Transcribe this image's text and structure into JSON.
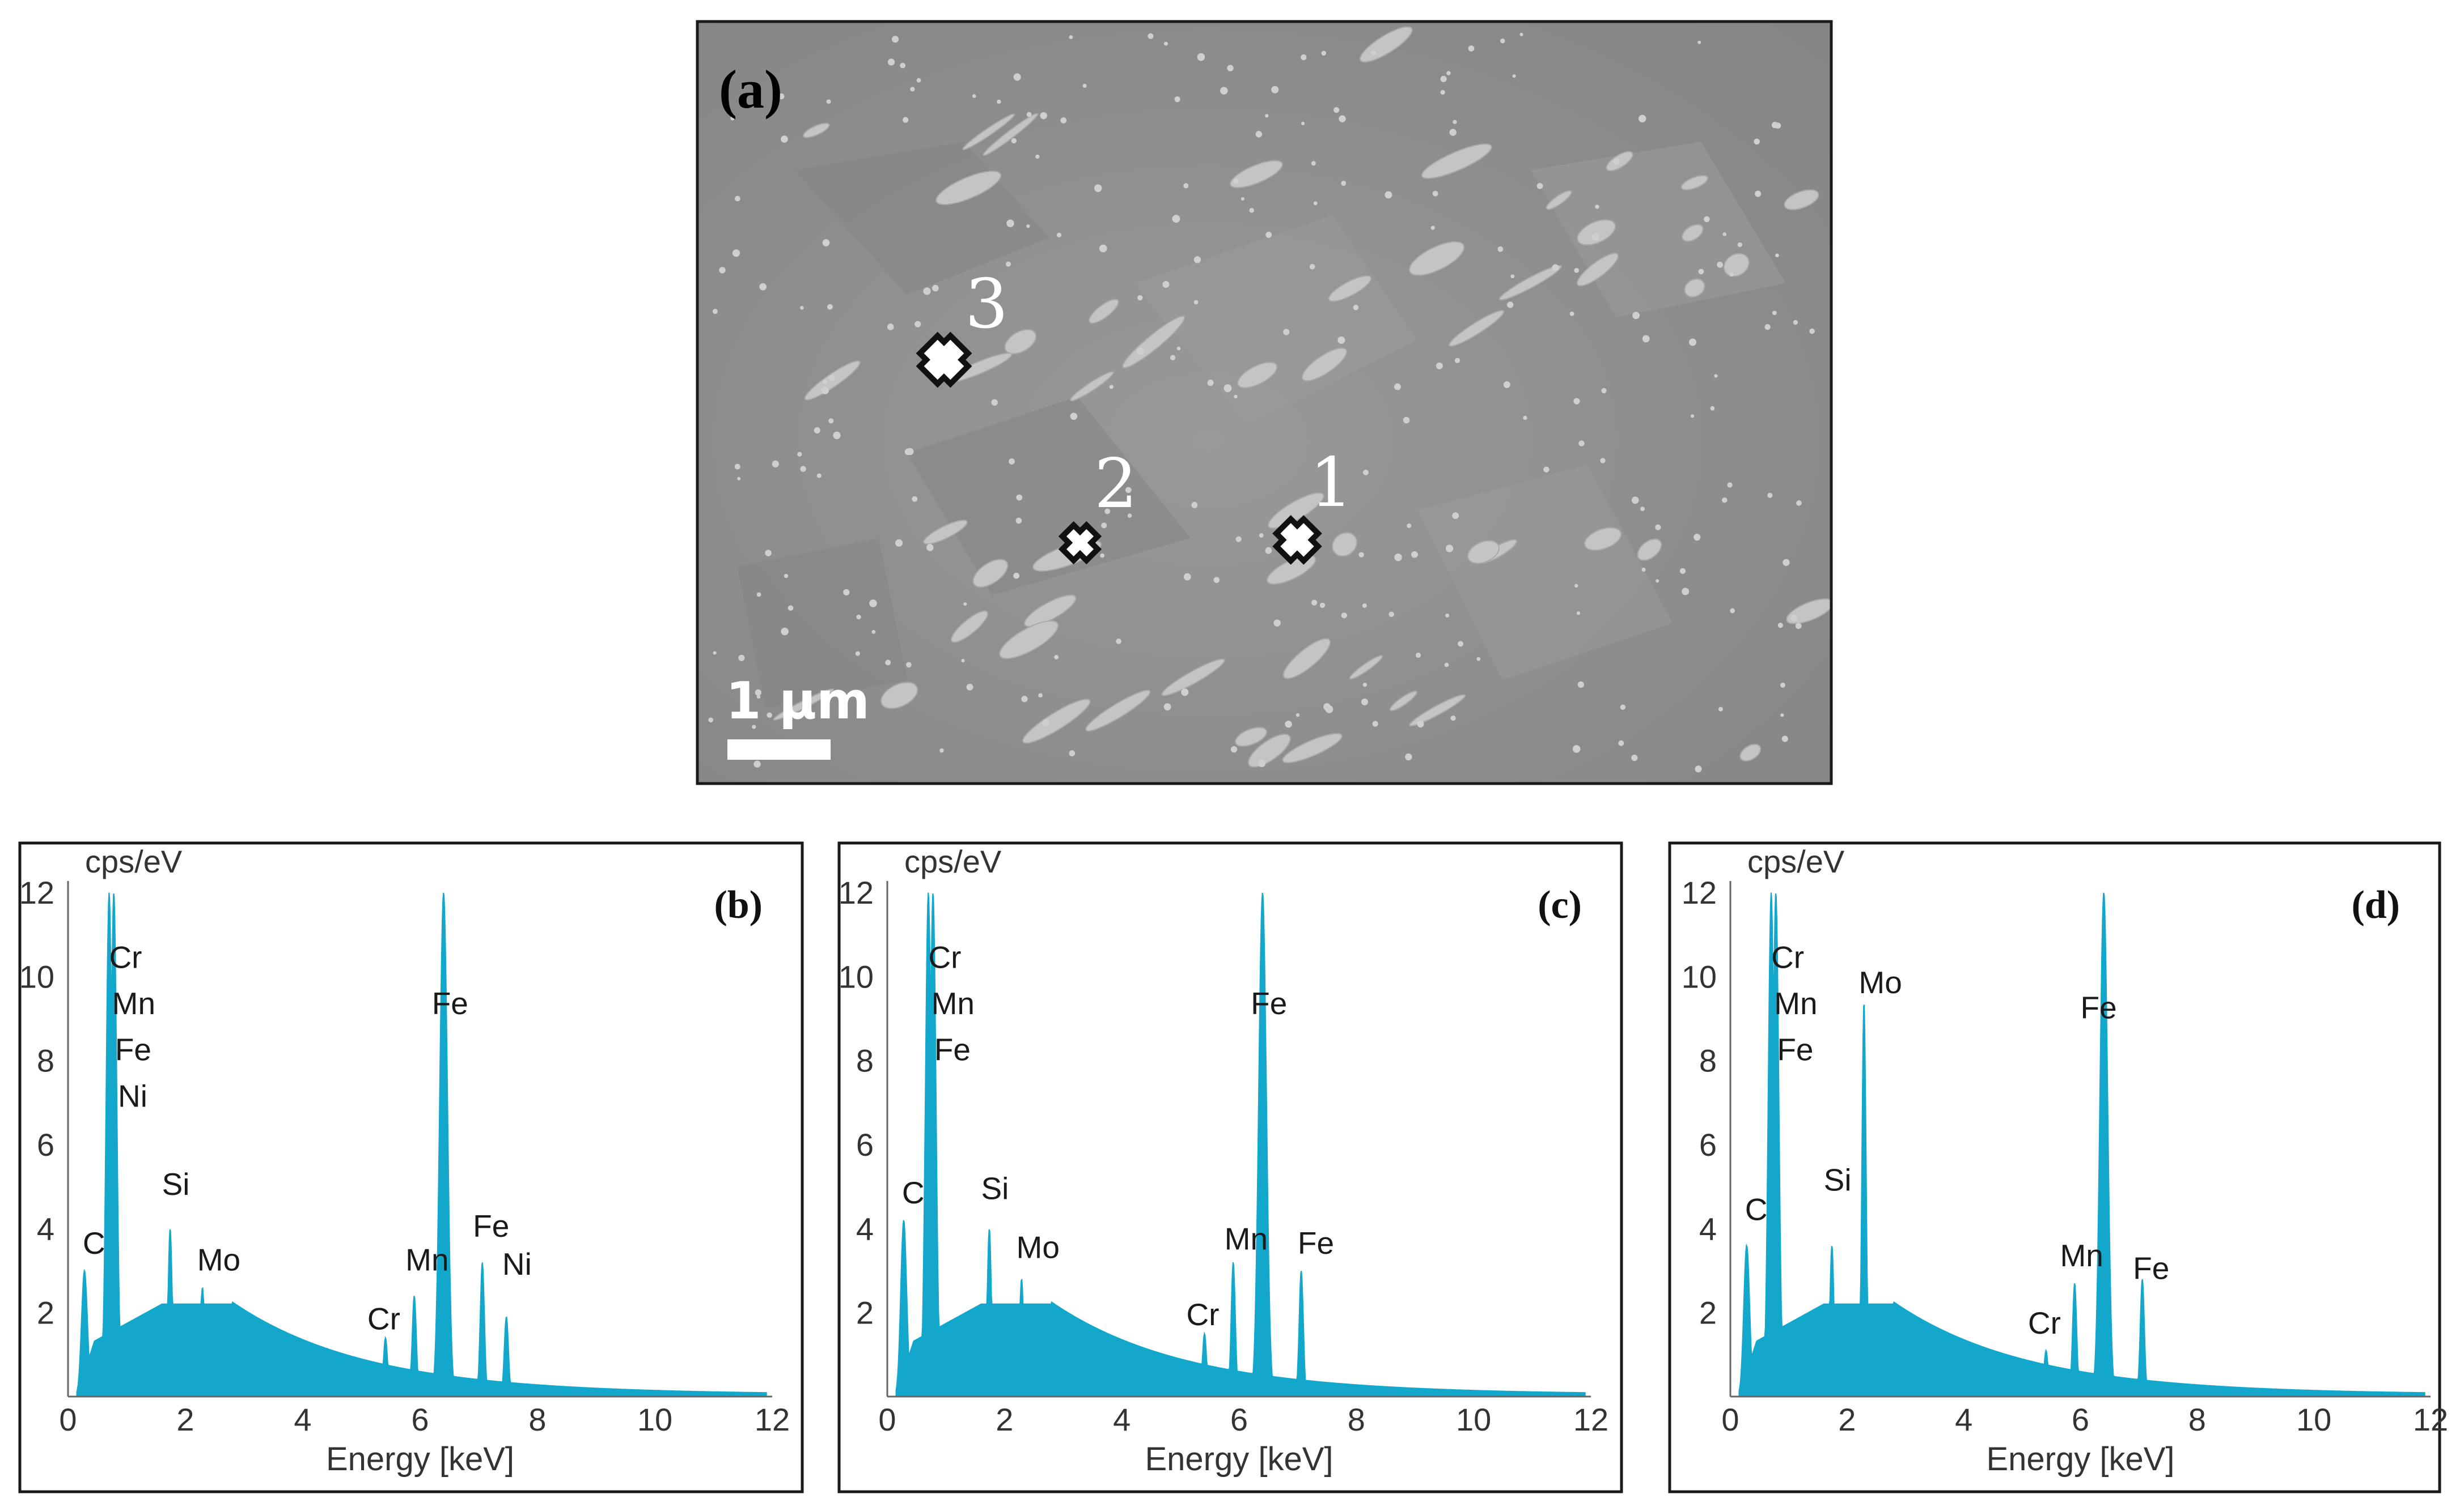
{
  "figure": {
    "sem": {
      "panel_label": "(a)",
      "scale_bar_label": "1 µm",
      "points": [
        {
          "label": "1",
          "marker": "cross-marker-icon"
        },
        {
          "label": "2",
          "marker": "cross-marker-icon"
        },
        {
          "label": "3",
          "marker": "cross-marker-icon"
        }
      ]
    },
    "colors": {
      "spectrum": "#13a7cc",
      "frame": "#1a1a1a",
      "sem_background": "#8e8e8e"
    }
  },
  "chart_data": [
    {
      "type": "area",
      "panel_label": "(b)",
      "ylabel": "cps/eV",
      "xlabel": "Energy [keV]",
      "xlim": [
        0,
        12
      ],
      "ylim": [
        0,
        12
      ],
      "xticks": [
        "0",
        "2",
        "4",
        "6",
        "8",
        "10",
        "12"
      ],
      "yticks": [
        "2",
        "4",
        "6",
        "8",
        "10",
        "12"
      ],
      "background_height": 2.2,
      "peaks": [
        {
          "x": 0.28,
          "y": 3.0
        },
        {
          "x": 0.7,
          "y": 12
        },
        {
          "x": 0.78,
          "y": 12
        },
        {
          "x": 1.74,
          "y": 4.0
        },
        {
          "x": 2.29,
          "y": 2.6
        },
        {
          "x": 5.41,
          "y": 1.4
        },
        {
          "x": 5.9,
          "y": 2.4
        },
        {
          "x": 6.4,
          "y": 12
        },
        {
          "x": 7.06,
          "y": 3.2
        },
        {
          "x": 7.47,
          "y": 1.9
        }
      ],
      "labels": [
        {
          "text": "C",
          "x": 0.28
        },
        {
          "text": "Cr",
          "x": 0.75
        },
        {
          "text": "Mn",
          "x": 0.88
        },
        {
          "text": "Fe",
          "x": 1.0
        },
        {
          "text": "Ni",
          "x": 1.1
        },
        {
          "text": "Si",
          "x": 1.74
        },
        {
          "text": "Mo",
          "x": 2.29
        },
        {
          "text": "Cr",
          "x": 5.41
        },
        {
          "text": "Mn",
          "x": 5.9
        },
        {
          "text": "Fe",
          "x": 6.4
        },
        {
          "text": "Fe",
          "x": 7.06
        },
        {
          "text": "Ni",
          "x": 7.47
        }
      ]
    },
    {
      "type": "area",
      "panel_label": "(c)",
      "ylabel": "cps/eV",
      "xlabel": "Energy [keV]",
      "xlim": [
        0,
        12
      ],
      "ylim": [
        0,
        12
      ],
      "xticks": [
        "0",
        "2",
        "4",
        "6",
        "8",
        "10",
        "12"
      ],
      "yticks": [
        "2",
        "4",
        "6",
        "8",
        "10",
        "12"
      ],
      "background_height": 2.2,
      "peaks": [
        {
          "x": 0.28,
          "y": 4.2
        },
        {
          "x": 0.7,
          "y": 12
        },
        {
          "x": 0.78,
          "y": 12
        },
        {
          "x": 1.74,
          "y": 4.0
        },
        {
          "x": 2.29,
          "y": 2.8
        },
        {
          "x": 5.41,
          "y": 1.5
        },
        {
          "x": 5.9,
          "y": 3.2
        },
        {
          "x": 6.4,
          "y": 12
        },
        {
          "x": 7.06,
          "y": 3.0
        }
      ],
      "labels": [
        {
          "text": "C",
          "x": 0.28
        },
        {
          "text": "Cr",
          "x": 0.75
        },
        {
          "text": "Mn",
          "x": 0.88
        },
        {
          "text": "Fe",
          "x": 1.0
        },
        {
          "text": "Si",
          "x": 1.74
        },
        {
          "text": "Mo",
          "x": 2.29
        },
        {
          "text": "Cr",
          "x": 5.41
        },
        {
          "text": "Mn",
          "x": 5.9
        },
        {
          "text": "Fe",
          "x": 6.4
        },
        {
          "text": "Fe",
          "x": 7.06
        }
      ]
    },
    {
      "type": "area",
      "panel_label": "(d)",
      "ylabel": "cps/eV",
      "xlabel": "Energy [keV]",
      "xlim": [
        0,
        12
      ],
      "ylim": [
        0,
        12
      ],
      "xticks": [
        "0",
        "2",
        "4",
        "6",
        "8",
        "10",
        "12"
      ],
      "yticks": [
        "2",
        "4",
        "6",
        "8",
        "10",
        "12"
      ],
      "background_height": 2.2,
      "peaks": [
        {
          "x": 0.28,
          "y": 3.6
        },
        {
          "x": 0.7,
          "y": 12
        },
        {
          "x": 0.78,
          "y": 12
        },
        {
          "x": 1.74,
          "y": 3.6
        },
        {
          "x": 2.29,
          "y": 9.4
        },
        {
          "x": 5.41,
          "y": 1.1
        },
        {
          "x": 5.9,
          "y": 2.7
        },
        {
          "x": 6.4,
          "y": 12
        },
        {
          "x": 7.06,
          "y": 2.8
        }
      ],
      "labels": [
        {
          "text": "C",
          "x": 0.28
        },
        {
          "text": "Cr",
          "x": 0.75
        },
        {
          "text": "Mn",
          "x": 0.88
        },
        {
          "text": "Fe",
          "x": 1.0
        },
        {
          "text": "Si",
          "x": 1.74
        },
        {
          "text": "Mo",
          "x": 2.29
        },
        {
          "text": "Cr",
          "x": 5.41
        },
        {
          "text": "Mn",
          "x": 5.9
        },
        {
          "text": "Fe",
          "x": 6.4
        },
        {
          "text": "Fe",
          "x": 7.06
        }
      ]
    }
  ]
}
